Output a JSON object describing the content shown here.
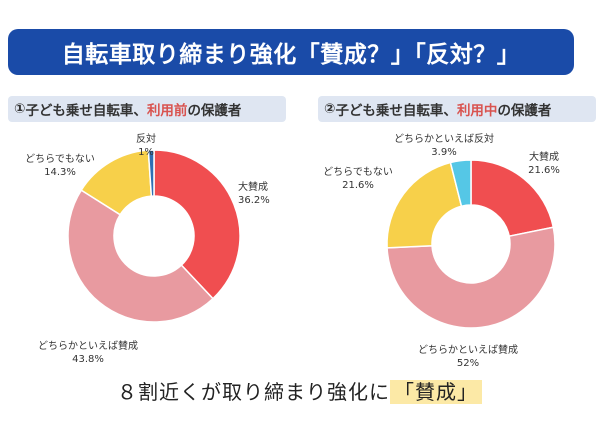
{
  "header": {
    "title": "自転車取り締まり強化「賛成？」「反対？」"
  },
  "colors": {
    "banner": "#1a4ba8",
    "strong_agree": "#f04e50",
    "agree_somewhat": "#e89aa0",
    "neither": "#f7d04a",
    "oppose_somewhat": "#55c7e6",
    "oppose": "#2f6fb3"
  },
  "panels": [
    {
      "num": "①",
      "title_pre": "子ども乗せ自転車、",
      "title_highlight": "利用前",
      "title_post": "の保護者"
    },
    {
      "num": "②",
      "title_pre": "子ども乗せ自転車、",
      "title_highlight": "利用中",
      "title_post": "の保護者"
    }
  ],
  "chart_data": [
    {
      "type": "pie",
      "title": "①子ども乗せ自転車、利用前の保護者",
      "categories": [
        "大賛成",
        "どちらかといえば賛成",
        "どちらでもない",
        "どちらかといえば反対",
        "反対"
      ],
      "values": [
        36.2,
        43.8,
        14.3,
        0,
        1
      ],
      "value_labels": [
        "36.2%",
        "43.8%",
        "14.3%",
        "",
        "1%"
      ],
      "label_names": [
        "大賛成",
        "どちらかといえば賛成",
        "どちらでもない",
        "",
        "反対"
      ],
      "hole": true
    },
    {
      "type": "pie",
      "title": "②子ども乗せ自転車、利用中の保護者",
      "categories": [
        "大賛成",
        "どちらかといえば賛成",
        "どちらでもない",
        "どちらかといえば反対",
        "反対"
      ],
      "values": [
        21.6,
        52,
        21.6,
        3.9,
        0
      ],
      "value_labels": [
        "21.6%",
        "52%",
        "21.6%",
        "3.9%",
        ""
      ],
      "label_names": [
        "大賛成",
        "どちらかといえば賛成",
        "どちらでもない",
        "どちらかといえば反対",
        ""
      ],
      "hole": true
    }
  ],
  "conclusion": {
    "text_pre": "８割近くが取り締まり強化に",
    "text_highlight": "「賛成」"
  }
}
